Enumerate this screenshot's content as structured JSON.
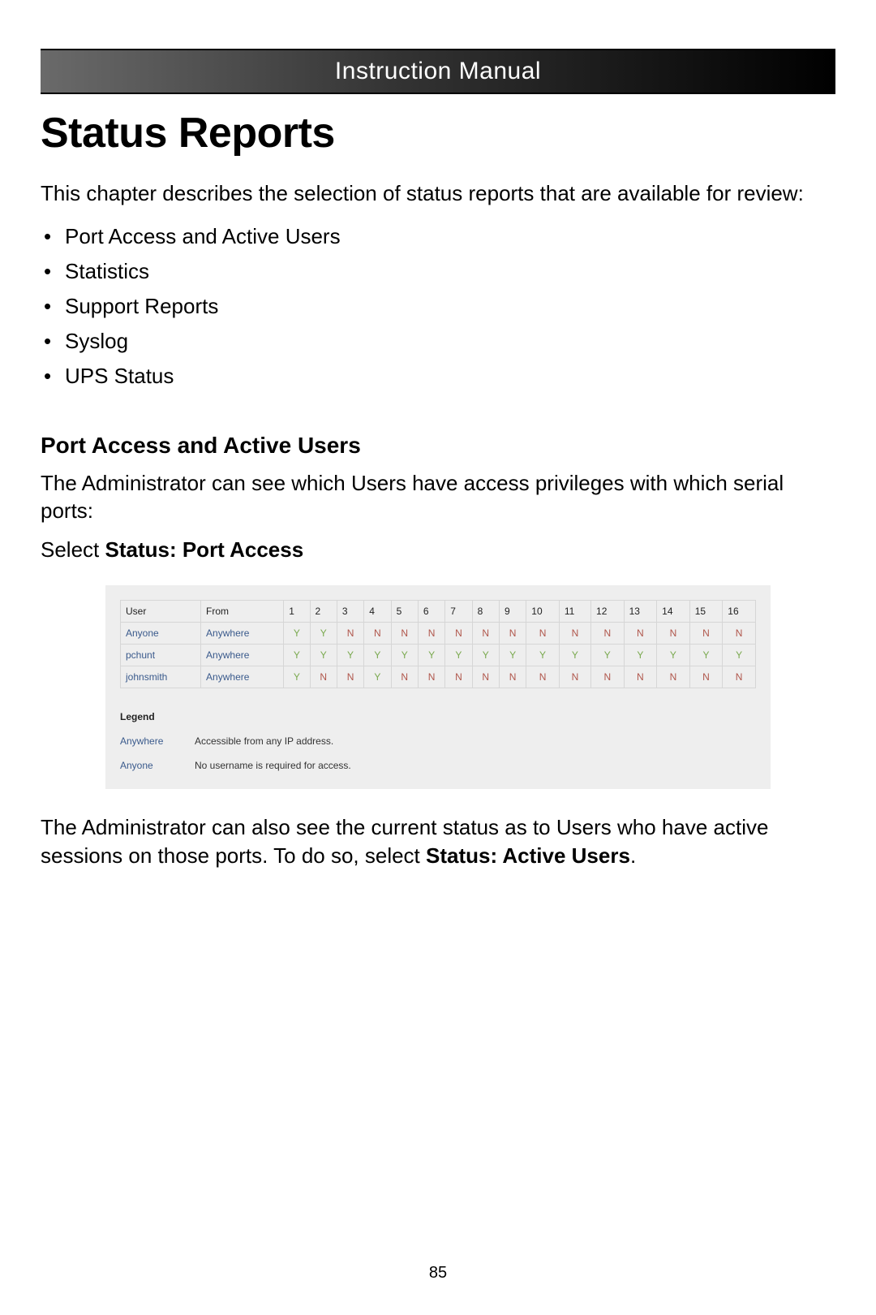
{
  "header": {
    "title": "Instruction Manual"
  },
  "page_title": "Status Reports",
  "intro": "This chapter describes the selection of status reports that are available for review:",
  "bullets": {
    "b0": "Port Access and Active Users",
    "b1": "Statistics",
    "b2": "Support Reports",
    "b3": "Syslog",
    "b4": "UPS Status"
  },
  "section": {
    "heading": "Port Access and Active Users",
    "text": "The Administrator can see which Users have access privileges with which serial ports:",
    "select_prefix": "Select ",
    "select_bold": "Status: Port Access"
  },
  "port_table": {
    "columns": {
      "user": "User",
      "from": "From",
      "c1": "1",
      "c2": "2",
      "c3": "3",
      "c4": "4",
      "c5": "5",
      "c6": "6",
      "c7": "7",
      "c8": "8",
      "c9": "9",
      "c10": "10",
      "c11": "11",
      "c12": "12",
      "c13": "13",
      "c14": "14",
      "c15": "15",
      "c16": "16"
    },
    "rows": {
      "r0": {
        "user": "Anyone",
        "from": "Anywhere",
        "v1": "Y",
        "v2": "Y",
        "v3": "N",
        "v4": "N",
        "v5": "N",
        "v6": "N",
        "v7": "N",
        "v8": "N",
        "v9": "N",
        "v10": "N",
        "v11": "N",
        "v12": "N",
        "v13": "N",
        "v14": "N",
        "v15": "N",
        "v16": "N"
      },
      "r1": {
        "user": "pchunt",
        "from": "Anywhere",
        "v1": "Y",
        "v2": "Y",
        "v3": "Y",
        "v4": "Y",
        "v5": "Y",
        "v6": "Y",
        "v7": "Y",
        "v8": "Y",
        "v9": "Y",
        "v10": "Y",
        "v11": "Y",
        "v12": "Y",
        "v13": "Y",
        "v14": "Y",
        "v15": "Y",
        "v16": "Y"
      },
      "r2": {
        "user": "johnsmith",
        "from": "Anywhere",
        "v1": "Y",
        "v2": "N",
        "v3": "N",
        "v4": "Y",
        "v5": "N",
        "v6": "N",
        "v7": "N",
        "v8": "N",
        "v9": "N",
        "v10": "N",
        "v11": "N",
        "v12": "N",
        "v13": "N",
        "v14": "N",
        "v15": "N",
        "v16": "N"
      }
    },
    "y_color": "#7aa94f",
    "n_color": "#b0564b",
    "link_color": "#3a5a8c",
    "border_color": "#d6d6d6",
    "bg_color": "#eeeeee"
  },
  "legend": {
    "title": "Legend",
    "row0": {
      "term": "Anywhere",
      "desc": "Accessible from any IP address."
    },
    "row1": {
      "term": "Anyone",
      "desc": "No username is required for access."
    }
  },
  "closing": {
    "part1": "The Administrator can also see the current status as to Users who have active sessions on those ports.  To do so, select ",
    "bold": "Status: Active Users",
    "part2": "."
  },
  "page_number": "85"
}
